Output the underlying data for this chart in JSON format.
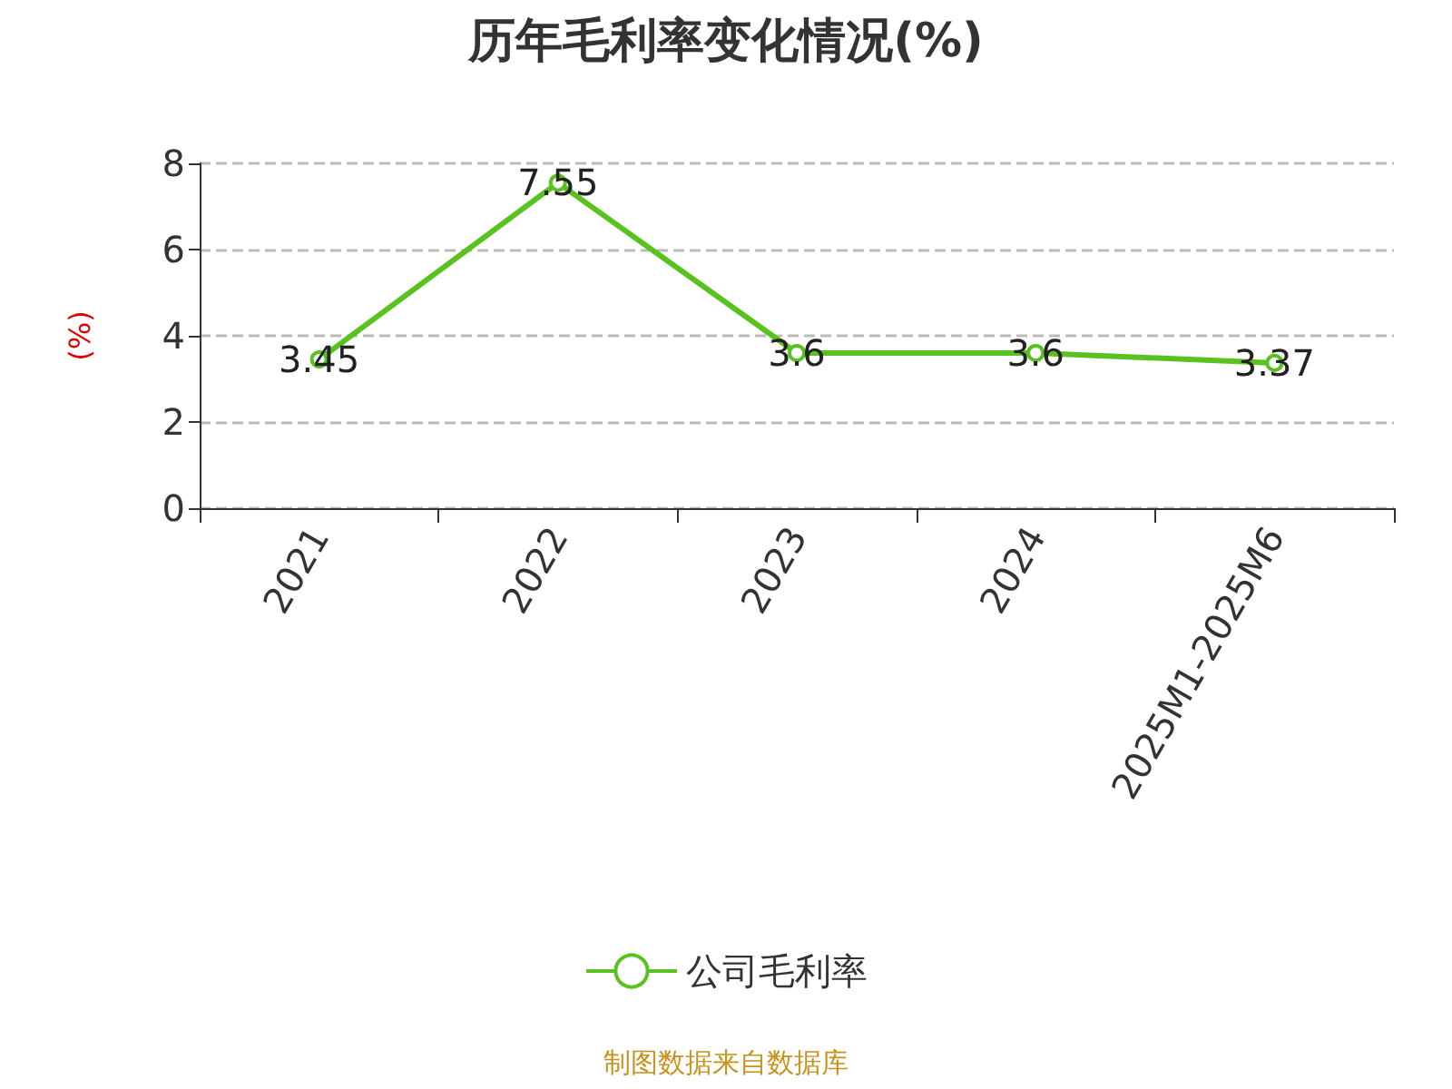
{
  "chart_data": {
    "type": "line",
    "title": "历年毛利率变化情况(%)",
    "ylabel": "(%)",
    "categories": [
      "2021",
      "2022",
      "2023",
      "2024",
      "2025M1-2025M6"
    ],
    "series": [
      {
        "name": "公司毛利率",
        "color": "#5ac21e",
        "values": [
          3.45,
          7.55,
          3.6,
          3.6,
          3.37
        ]
      }
    ],
    "ylim": [
      0,
      8
    ],
    "yticks": [
      0,
      2,
      4,
      6,
      8
    ],
    "grid": "y",
    "legend": "bottom",
    "marker": "circle",
    "line_style": "solid",
    "data_labels": true,
    "annotations": [
      "制图数据来自数据库"
    ]
  }
}
